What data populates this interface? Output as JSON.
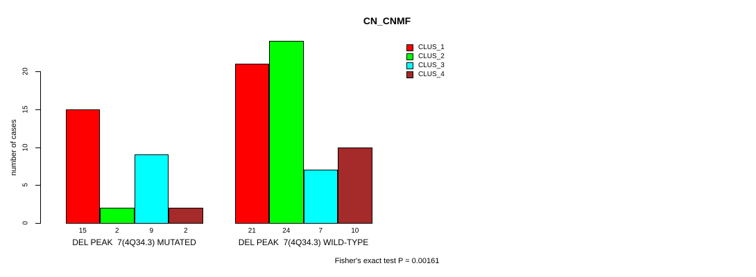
{
  "chart_data": {
    "type": "bar",
    "title": "CN_CNMF",
    "ylabel": "number of cases",
    "ylim": [
      0,
      20
    ],
    "yticks": [
      0,
      5,
      10,
      15,
      20
    ],
    "grid": false,
    "legend_position": "top-right",
    "bar_border_color": "#000000",
    "series": [
      {
        "name": "CLUS_1",
        "color": "#FF0000"
      },
      {
        "name": "CLUS_2",
        "color": "#00FF00"
      },
      {
        "name": "CLUS_3",
        "color": "#00FFFF"
      },
      {
        "name": "CLUS_4",
        "color": "#A52A2A"
      }
    ],
    "groups": [
      {
        "label": "DEL PEAK  7(4Q34.3) MUTATED",
        "values": [
          15,
          2,
          9,
          2
        ]
      },
      {
        "label": "DEL PEAK  7(4Q34.3) WILD-TYPE",
        "values": [
          21,
          24,
          7,
          10
        ]
      }
    ],
    "bar_value_labels_shown": true,
    "annotation": "Fisher's exact test P = 0.00161"
  }
}
